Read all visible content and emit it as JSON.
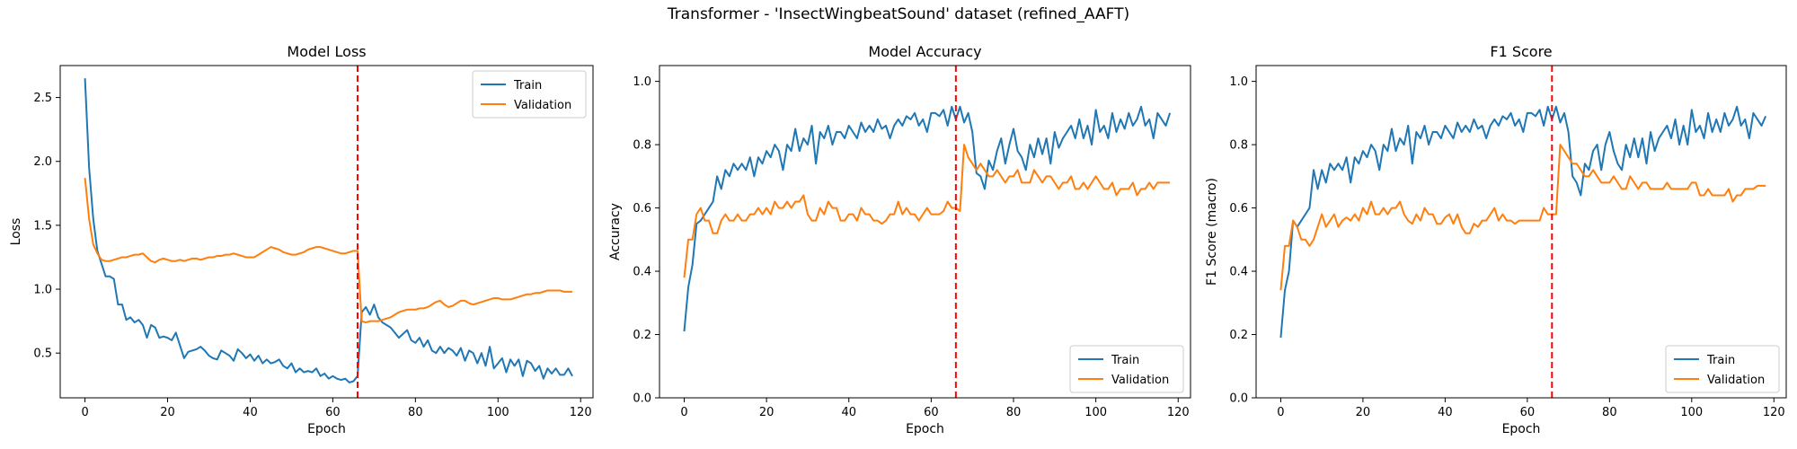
{
  "figure": {
    "suptitle": "Transformer - 'InsectWingbeatSound' dataset (refined_AAFT)"
  },
  "colors": {
    "train": "#1f77b4",
    "validation": "#ff7f0e",
    "vline": "#ff0000",
    "axis": "#000000"
  },
  "chart_data": [
    {
      "type": "line",
      "title": "Model Loss",
      "xlabel": "Epoch",
      "ylabel": "Loss",
      "xlim": [
        -6,
        123
      ],
      "ylim": [
        0.15,
        2.75
      ],
      "xticks": [
        0,
        20,
        40,
        60,
        80,
        100,
        120
      ],
      "yticks": [
        0.5,
        1.0,
        1.5,
        2.0,
        2.5
      ],
      "ytick_labels": [
        "0.5",
        "1.0",
        "1.5",
        "2.0",
        "2.5"
      ],
      "legend": {
        "position": "top-right",
        "entries": [
          "Train",
          "Validation"
        ]
      },
      "vline_x": 66,
      "series": [
        {
          "name": "Train",
          "values": [
            2.65,
            1.95,
            1.55,
            1.3,
            1.2,
            1.1,
            1.1,
            1.08,
            0.88,
            0.88,
            0.76,
            0.78,
            0.74,
            0.76,
            0.72,
            0.62,
            0.72,
            0.7,
            0.62,
            0.63,
            0.62,
            0.6,
            0.66,
            0.56,
            0.46,
            0.51,
            0.52,
            0.53,
            0.55,
            0.52,
            0.48,
            0.46,
            0.45,
            0.52,
            0.5,
            0.48,
            0.44,
            0.53,
            0.5,
            0.46,
            0.49,
            0.44,
            0.48,
            0.42,
            0.45,
            0.42,
            0.43,
            0.45,
            0.4,
            0.38,
            0.42,
            0.35,
            0.38,
            0.35,
            0.36,
            0.35,
            0.38,
            0.32,
            0.34,
            0.3,
            0.32,
            0.3,
            0.29,
            0.3,
            0.27,
            0.28,
            0.32,
            0.82,
            0.86,
            0.8,
            0.88,
            0.78,
            0.74,
            0.72,
            0.7,
            0.66,
            0.62,
            0.65,
            0.68,
            0.6,
            0.58,
            0.62,
            0.55,
            0.6,
            0.52,
            0.5,
            0.55,
            0.5,
            0.54,
            0.52,
            0.48,
            0.54,
            0.44,
            0.52,
            0.5,
            0.42,
            0.5,
            0.4,
            0.55,
            0.38,
            0.42,
            0.46,
            0.35,
            0.45,
            0.4,
            0.45,
            0.32,
            0.44,
            0.42,
            0.36,
            0.4,
            0.3,
            0.38,
            0.34,
            0.38,
            0.33,
            0.33,
            0.38,
            0.32
          ]
        },
        {
          "name": "Validation",
          "values": [
            1.87,
            1.55,
            1.35,
            1.28,
            1.23,
            1.22,
            1.22,
            1.23,
            1.24,
            1.25,
            1.25,
            1.26,
            1.27,
            1.27,
            1.28,
            1.25,
            1.22,
            1.21,
            1.23,
            1.24,
            1.23,
            1.22,
            1.22,
            1.23,
            1.22,
            1.23,
            1.24,
            1.24,
            1.23,
            1.24,
            1.25,
            1.25,
            1.26,
            1.26,
            1.27,
            1.27,
            1.28,
            1.27,
            1.26,
            1.25,
            1.25,
            1.25,
            1.27,
            1.29,
            1.31,
            1.33,
            1.32,
            1.31,
            1.29,
            1.28,
            1.27,
            1.27,
            1.28,
            1.29,
            1.31,
            1.32,
            1.33,
            1.33,
            1.32,
            1.31,
            1.3,
            1.29,
            1.28,
            1.28,
            1.29,
            1.3,
            1.3,
            0.75,
            0.74,
            0.75,
            0.75,
            0.75,
            0.76,
            0.77,
            0.78,
            0.8,
            0.82,
            0.83,
            0.84,
            0.84,
            0.84,
            0.85,
            0.85,
            0.86,
            0.88,
            0.9,
            0.91,
            0.88,
            0.86,
            0.87,
            0.89,
            0.91,
            0.91,
            0.89,
            0.88,
            0.89,
            0.9,
            0.91,
            0.92,
            0.93,
            0.93,
            0.92,
            0.92,
            0.92,
            0.93,
            0.94,
            0.95,
            0.96,
            0.96,
            0.97,
            0.97,
            0.98,
            0.99,
            0.99,
            0.99,
            0.99,
            0.98,
            0.98,
            0.98
          ]
        }
      ]
    },
    {
      "type": "line",
      "title": "Model Accuracy",
      "xlabel": "Epoch",
      "ylabel": "Accuracy",
      "xlim": [
        -6,
        123
      ],
      "ylim": [
        0,
        1.05
      ],
      "xticks": [
        0,
        20,
        40,
        60,
        80,
        100,
        120
      ],
      "yticks": [
        0,
        0.2,
        0.4,
        0.6,
        0.8,
        1.0
      ],
      "ytick_labels": [
        "0.0",
        "0.2",
        "0.4",
        "0.6",
        "0.8",
        "1.0"
      ],
      "legend": {
        "position": "bottom-right",
        "entries": [
          "Train",
          "Validation"
        ]
      },
      "vline_x": 66,
      "series": [
        {
          "name": "Train",
          "values": [
            0.21,
            0.35,
            0.42,
            0.55,
            0.56,
            0.58,
            0.6,
            0.62,
            0.7,
            0.66,
            0.72,
            0.7,
            0.74,
            0.72,
            0.74,
            0.72,
            0.76,
            0.7,
            0.76,
            0.74,
            0.78,
            0.76,
            0.8,
            0.78,
            0.72,
            0.8,
            0.78,
            0.85,
            0.78,
            0.82,
            0.8,
            0.86,
            0.74,
            0.84,
            0.82,
            0.86,
            0.8,
            0.84,
            0.84,
            0.82,
            0.86,
            0.84,
            0.82,
            0.87,
            0.84,
            0.86,
            0.84,
            0.88,
            0.85,
            0.86,
            0.82,
            0.86,
            0.88,
            0.86,
            0.89,
            0.88,
            0.9,
            0.86,
            0.88,
            0.84,
            0.9,
            0.9,
            0.89,
            0.91,
            0.86,
            0.92,
            0.88,
            0.92,
            0.87,
            0.9,
            0.84,
            0.71,
            0.7,
            0.66,
            0.75,
            0.72,
            0.78,
            0.82,
            0.74,
            0.8,
            0.85,
            0.78,
            0.76,
            0.72,
            0.8,
            0.76,
            0.82,
            0.77,
            0.82,
            0.74,
            0.84,
            0.79,
            0.82,
            0.84,
            0.86,
            0.82,
            0.88,
            0.82,
            0.86,
            0.8,
            0.91,
            0.84,
            0.86,
            0.82,
            0.9,
            0.84,
            0.88,
            0.85,
            0.9,
            0.86,
            0.88,
            0.92,
            0.86,
            0.88,
            0.82,
            0.9,
            0.88,
            0.86,
            0.9
          ]
        },
        {
          "name": "Validation",
          "values": [
            0.38,
            0.5,
            0.5,
            0.58,
            0.6,
            0.56,
            0.56,
            0.52,
            0.52,
            0.56,
            0.58,
            0.56,
            0.56,
            0.58,
            0.56,
            0.56,
            0.58,
            0.58,
            0.6,
            0.58,
            0.6,
            0.58,
            0.62,
            0.6,
            0.6,
            0.62,
            0.6,
            0.62,
            0.62,
            0.64,
            0.58,
            0.56,
            0.56,
            0.6,
            0.58,
            0.62,
            0.6,
            0.6,
            0.56,
            0.56,
            0.58,
            0.58,
            0.56,
            0.6,
            0.58,
            0.58,
            0.56,
            0.56,
            0.55,
            0.56,
            0.58,
            0.58,
            0.62,
            0.58,
            0.6,
            0.58,
            0.58,
            0.56,
            0.58,
            0.6,
            0.58,
            0.58,
            0.58,
            0.59,
            0.62,
            0.6,
            0.6,
            0.59,
            0.8,
            0.76,
            0.74,
            0.72,
            0.74,
            0.72,
            0.7,
            0.7,
            0.72,
            0.7,
            0.68,
            0.7,
            0.7,
            0.72,
            0.68,
            0.68,
            0.68,
            0.72,
            0.7,
            0.68,
            0.7,
            0.7,
            0.68,
            0.66,
            0.68,
            0.68,
            0.7,
            0.66,
            0.66,
            0.68,
            0.66,
            0.68,
            0.7,
            0.68,
            0.66,
            0.66,
            0.68,
            0.64,
            0.66,
            0.66,
            0.66,
            0.68,
            0.64,
            0.66,
            0.66,
            0.68,
            0.66,
            0.68,
            0.68,
            0.68,
            0.68
          ]
        }
      ]
    },
    {
      "type": "line",
      "title": "F1 Score",
      "xlabel": "Epoch",
      "ylabel": "F1 Score (macro)",
      "xlim": [
        -6,
        123
      ],
      "ylim": [
        0,
        1.05
      ],
      "xticks": [
        0,
        20,
        40,
        60,
        80,
        100,
        120
      ],
      "yticks": [
        0,
        0.2,
        0.4,
        0.6,
        0.8,
        1.0
      ],
      "ytick_labels": [
        "0.0",
        "0.2",
        "0.4",
        "0.6",
        "0.8",
        "1.0"
      ],
      "legend": {
        "position": "bottom-right",
        "entries": [
          "Train",
          "Validation"
        ]
      },
      "vline_x": 66,
      "series": [
        {
          "name": "Train",
          "values": [
            0.19,
            0.34,
            0.4,
            0.56,
            0.54,
            0.56,
            0.58,
            0.6,
            0.72,
            0.66,
            0.72,
            0.68,
            0.74,
            0.72,
            0.74,
            0.72,
            0.76,
            0.68,
            0.76,
            0.74,
            0.78,
            0.76,
            0.8,
            0.78,
            0.72,
            0.8,
            0.78,
            0.85,
            0.78,
            0.82,
            0.8,
            0.86,
            0.74,
            0.84,
            0.82,
            0.86,
            0.8,
            0.84,
            0.84,
            0.82,
            0.86,
            0.84,
            0.82,
            0.87,
            0.84,
            0.86,
            0.84,
            0.88,
            0.85,
            0.86,
            0.82,
            0.86,
            0.88,
            0.86,
            0.89,
            0.88,
            0.9,
            0.86,
            0.88,
            0.84,
            0.9,
            0.9,
            0.89,
            0.91,
            0.86,
            0.92,
            0.88,
            0.92,
            0.87,
            0.9,
            0.84,
            0.7,
            0.68,
            0.64,
            0.74,
            0.72,
            0.78,
            0.8,
            0.72,
            0.8,
            0.84,
            0.78,
            0.74,
            0.72,
            0.8,
            0.76,
            0.82,
            0.76,
            0.82,
            0.74,
            0.84,
            0.78,
            0.82,
            0.84,
            0.86,
            0.82,
            0.88,
            0.8,
            0.86,
            0.8,
            0.91,
            0.84,
            0.86,
            0.82,
            0.9,
            0.84,
            0.88,
            0.84,
            0.9,
            0.86,
            0.88,
            0.92,
            0.86,
            0.88,
            0.82,
            0.9,
            0.88,
            0.86,
            0.89
          ]
        },
        {
          "name": "Validation",
          "values": [
            0.34,
            0.48,
            0.48,
            0.56,
            0.54,
            0.5,
            0.5,
            0.48,
            0.5,
            0.54,
            0.58,
            0.54,
            0.56,
            0.58,
            0.54,
            0.56,
            0.57,
            0.56,
            0.58,
            0.56,
            0.6,
            0.58,
            0.62,
            0.58,
            0.58,
            0.6,
            0.58,
            0.6,
            0.6,
            0.62,
            0.58,
            0.56,
            0.55,
            0.58,
            0.56,
            0.6,
            0.58,
            0.58,
            0.55,
            0.55,
            0.57,
            0.58,
            0.55,
            0.58,
            0.54,
            0.52,
            0.52,
            0.55,
            0.54,
            0.56,
            0.56,
            0.58,
            0.6,
            0.56,
            0.58,
            0.56,
            0.56,
            0.55,
            0.56,
            0.56,
            0.56,
            0.56,
            0.56,
            0.56,
            0.6,
            0.58,
            0.58,
            0.58,
            0.8,
            0.78,
            0.76,
            0.74,
            0.74,
            0.72,
            0.7,
            0.7,
            0.72,
            0.7,
            0.68,
            0.68,
            0.68,
            0.7,
            0.68,
            0.66,
            0.66,
            0.7,
            0.68,
            0.66,
            0.68,
            0.68,
            0.66,
            0.66,
            0.66,
            0.66,
            0.68,
            0.66,
            0.66,
            0.66,
            0.66,
            0.66,
            0.68,
            0.68,
            0.64,
            0.64,
            0.66,
            0.64,
            0.64,
            0.64,
            0.64,
            0.66,
            0.62,
            0.64,
            0.64,
            0.66,
            0.66,
            0.66,
            0.67,
            0.67,
            0.67
          ]
        }
      ]
    }
  ]
}
